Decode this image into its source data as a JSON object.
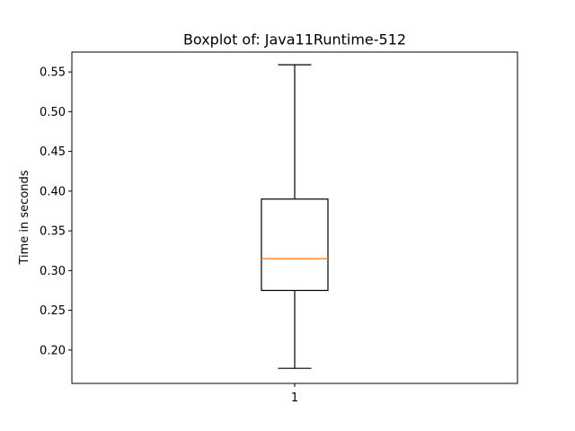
{
  "chart_data": {
    "type": "boxplot",
    "title": "Boxplot of: Java11Runtime-512",
    "xlabel": "",
    "ylabel": "Time in seconds",
    "categories": [
      "1"
    ],
    "ylim": [
      0.158,
      0.575
    ],
    "yticks": [
      0.2,
      0.25,
      0.3,
      0.35,
      0.4,
      0.45,
      0.5,
      0.55
    ],
    "yticklabels": [
      "0.20",
      "0.25",
      "0.30",
      "0.35",
      "0.40",
      "0.45",
      "0.50",
      "0.55"
    ],
    "boxes": [
      {
        "name": "1",
        "whisker_low": 0.177,
        "q1": 0.275,
        "median": 0.315,
        "q3": 0.39,
        "whisker_high": 0.559
      }
    ],
    "grid": false,
    "colors": {
      "box": "#000000",
      "median": "#ff7f0e",
      "whisker": "#000000"
    }
  }
}
